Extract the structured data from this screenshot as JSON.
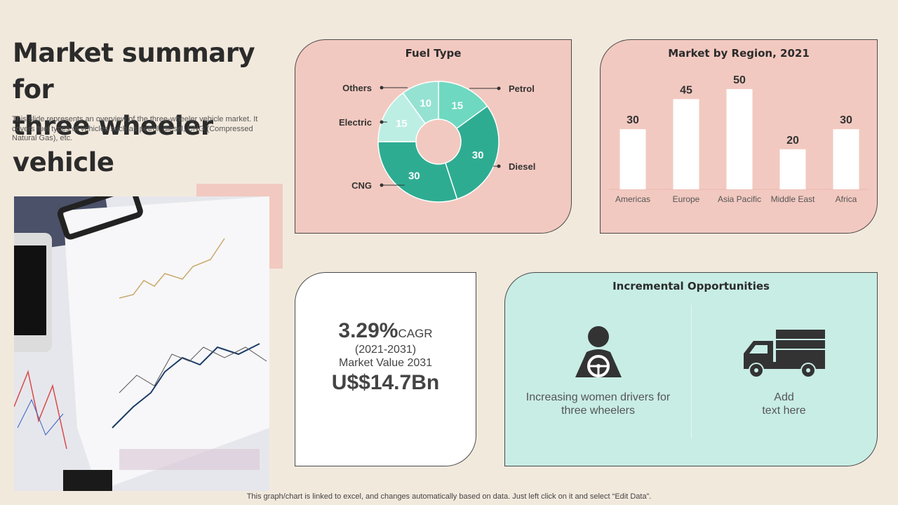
{
  "slide": {
    "title_line1": "Market summary for",
    "title_line2": "three wheeler vehicle",
    "description": "This slide represents an overview of the three-wheeler vehicle market. It covers fuel types of vehicles such as petrol, diesel, CNG (Compressed Natural Gas), etc.",
    "footnote": "This graph/chart is linked to excel,  and changes automatically based on data. Just left click on it and select “Edit Data”."
  },
  "colors": {
    "background": "#f2e9dd",
    "panel_pink": "#f2c9c0",
    "panel_mint": "#c8ede5",
    "donut_dark": "#2eac92",
    "donut_mid": "#6ed9c0",
    "donut_light": "#bdeee3"
  },
  "chart_data": [
    {
      "type": "pie",
      "donut": true,
      "title": "Fuel Type",
      "categories": [
        "Petrol",
        "Diesel",
        "CNG",
        "Electric",
        "Others"
      ],
      "values": [
        15,
        30,
        30,
        15,
        10
      ],
      "slice_colors": [
        "#6ed9c0",
        "#2eac92",
        "#2eac92",
        "#bdeee3",
        "#95e2d2"
      ]
    },
    {
      "type": "bar",
      "title": "Market by Region, 2021",
      "categories": [
        "Americas",
        "Europe",
        "Asia Pacific",
        "Middle East",
        "Africa"
      ],
      "values": [
        30,
        45,
        50,
        20,
        30
      ],
      "ylim": [
        0,
        50
      ],
      "bar_color": "#ffffff",
      "data_labels": true,
      "grid": false
    }
  ],
  "cagr": {
    "percent": "3.29%",
    "label": "CAGR",
    "period": "(2021-2031)",
    "value_label": "Market Value 2031",
    "value": "U$$14.7Bn"
  },
  "opportunities": {
    "title": "Incremental Opportunities",
    "items": [
      {
        "icon": "driver-icon",
        "line1": "Increasing women drivers for",
        "line2": "three wheelers"
      },
      {
        "icon": "truck-icon",
        "line1": "Add",
        "line2": "text here"
      }
    ]
  }
}
